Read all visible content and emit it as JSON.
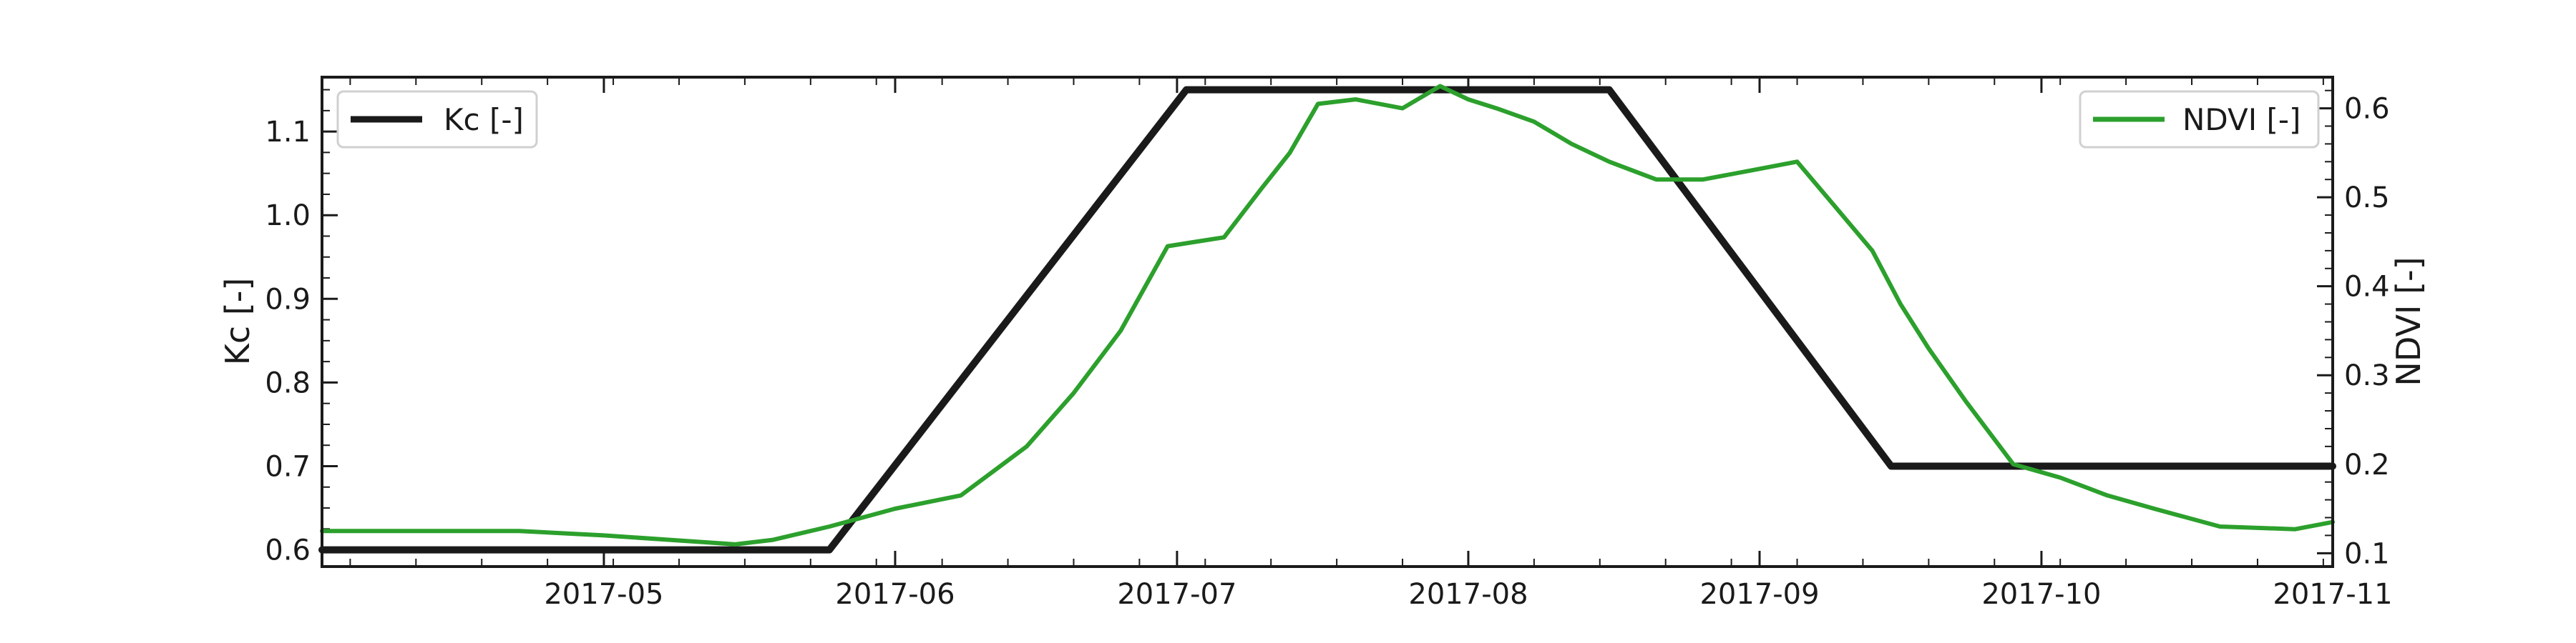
{
  "chart_data": {
    "type": "line",
    "xaxis": {
      "type": "date",
      "range": [
        "2017-04-01",
        "2017-11-01"
      ],
      "ticks": [
        "2017-05-01",
        "2017-06-01",
        "2017-07-01",
        "2017-08-01",
        "2017-09-01",
        "2017-10-01",
        "2017-11-01"
      ],
      "tick_labels": [
        "2017-05",
        "2017-06",
        "2017-07",
        "2017-08",
        "2017-09",
        "2017-10",
        "2017-11"
      ]
    },
    "yaxis_left": {
      "label": "Kc [-]",
      "range": [
        0.58,
        1.165
      ],
      "ticks": [
        0.6,
        0.7,
        0.8,
        0.9,
        1.0,
        1.1
      ],
      "tick_labels": [
        "0.6",
        "0.7",
        "0.8",
        "0.9",
        "1.0",
        "1.1"
      ]
    },
    "yaxis_right": {
      "label": "NDVI [-]",
      "range": [
        0.085,
        0.635
      ],
      "ticks": [
        0.1,
        0.2,
        0.3,
        0.4,
        0.5,
        0.6
      ],
      "tick_labels": [
        "0.1",
        "0.2",
        "0.3",
        "0.4",
        "0.5",
        "0.6"
      ]
    },
    "grid": false,
    "series": [
      {
        "name": "Kc [-]",
        "axis": "left",
        "color": "#1a1a1a",
        "legend_position": "top-left",
        "x": [
          "2017-04-01",
          "2017-05-25",
          "2017-07-02",
          "2017-08-16",
          "2017-09-15",
          "2017-11-01"
        ],
        "y": [
          0.6,
          0.6,
          1.15,
          1.15,
          0.7,
          0.7
        ]
      },
      {
        "name": "NDVI [-]",
        "axis": "right",
        "color": "#2ca02c",
        "legend_position": "top-right",
        "x": [
          "2017-04-01",
          "2017-04-22",
          "2017-05-01",
          "2017-05-08",
          "2017-05-15",
          "2017-05-19",
          "2017-05-25",
          "2017-06-01",
          "2017-06-08",
          "2017-06-15",
          "2017-06-20",
          "2017-06-25",
          "2017-06-30",
          "2017-07-03",
          "2017-07-06",
          "2017-07-10",
          "2017-07-13",
          "2017-07-16",
          "2017-07-20",
          "2017-07-25",
          "2017-07-29",
          "2017-08-01",
          "2017-08-04",
          "2017-08-08",
          "2017-08-12",
          "2017-08-16",
          "2017-08-21",
          "2017-08-26",
          "2017-08-31",
          "2017-09-05",
          "2017-09-09",
          "2017-09-13",
          "2017-09-16",
          "2017-09-19",
          "2017-09-23",
          "2017-09-28",
          "2017-10-03",
          "2017-10-08",
          "2017-10-13",
          "2017-10-20",
          "2017-10-28",
          "2017-11-01"
        ],
        "y": [
          0.125,
          0.125,
          0.12,
          0.115,
          0.11,
          0.115,
          0.13,
          0.15,
          0.165,
          0.22,
          0.28,
          0.35,
          0.445,
          0.45,
          0.455,
          0.51,
          0.55,
          0.605,
          0.61,
          0.6,
          0.625,
          0.61,
          0.6,
          0.585,
          0.56,
          0.54,
          0.52,
          0.52,
          0.53,
          0.54,
          0.49,
          0.44,
          0.38,
          0.33,
          0.27,
          0.2,
          0.185,
          0.165,
          0.15,
          0.13,
          0.127,
          0.135
        ]
      }
    ]
  }
}
